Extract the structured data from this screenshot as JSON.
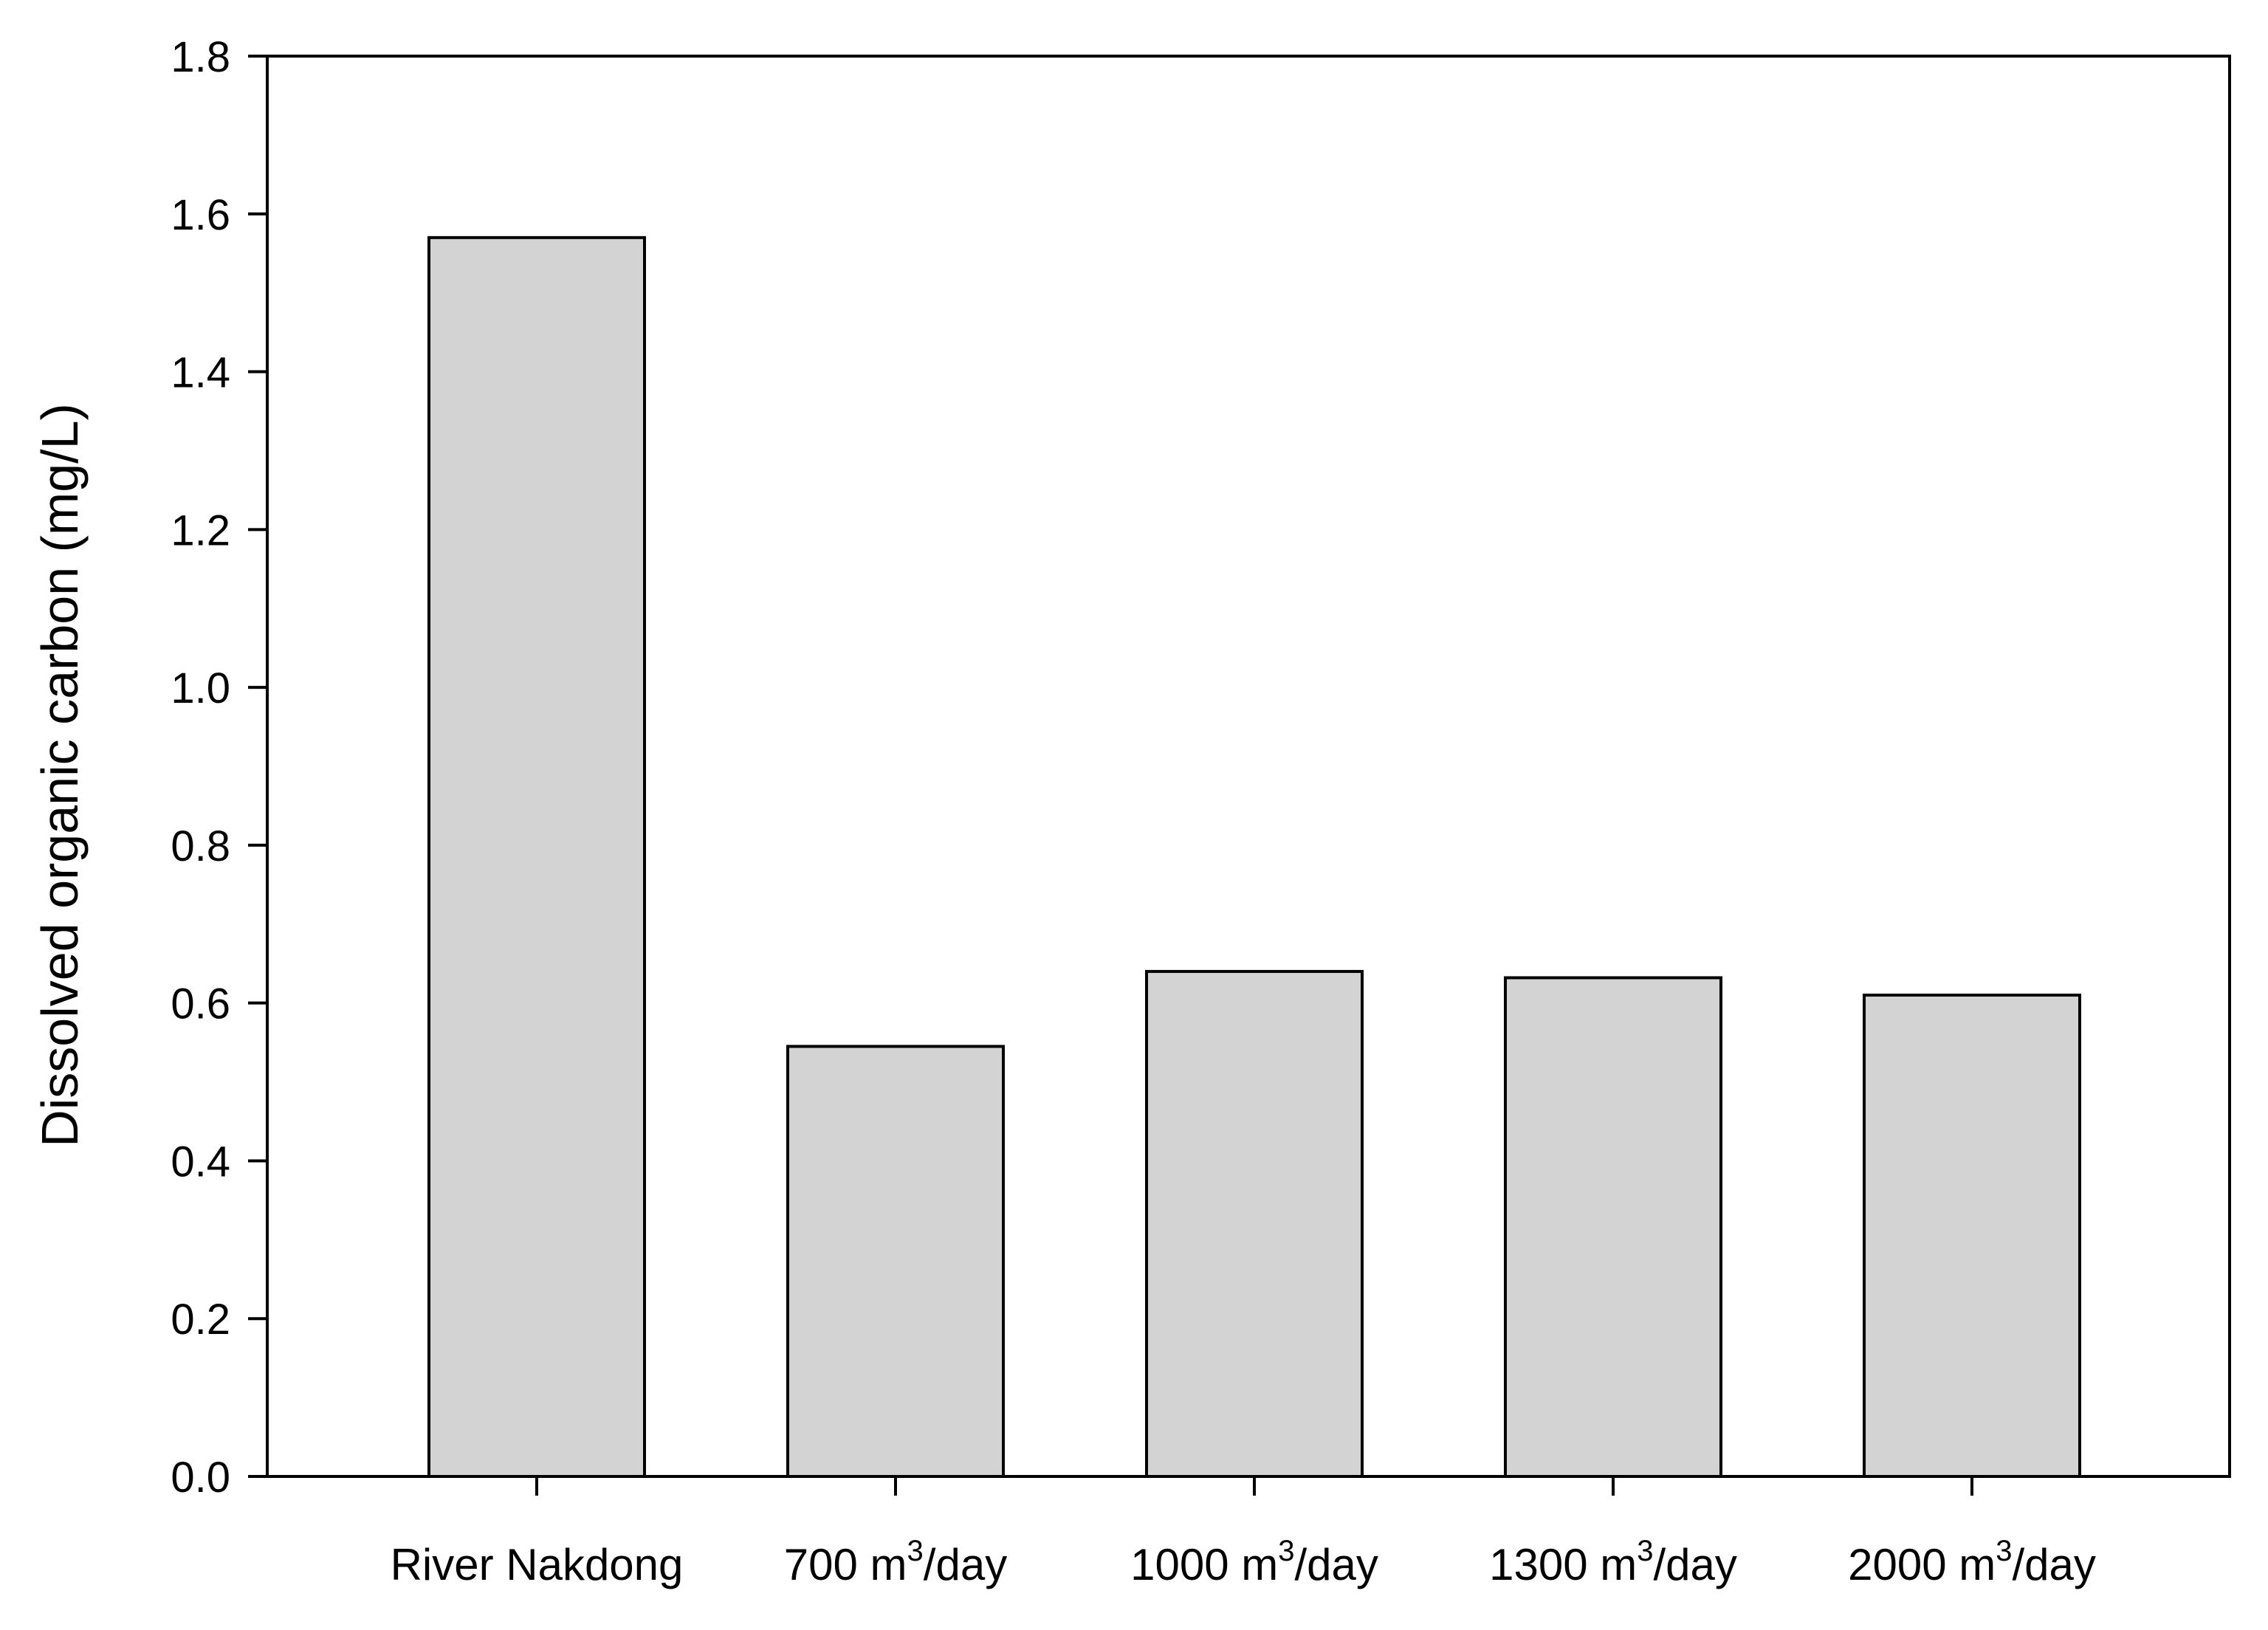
{
  "chart_data": {
    "type": "bar",
    "title": "",
    "xlabel": "",
    "ylabel": "Dissolved organic carbon (mg/L)",
    "ylim": [
      0,
      1.8
    ],
    "yticks": [
      "0.0",
      "0.2",
      "0.4",
      "0.6",
      "0.8",
      "1.0",
      "1.2",
      "1.4",
      "1.6",
      "1.8"
    ],
    "categories": [
      "River Nakdong",
      "700 m3/day",
      "1000 m3/day",
      "1300 m3/day",
      "2000 m3/day"
    ],
    "category_labels": [
      {
        "pre": "River Nakdong",
        "sup": "",
        "post": ""
      },
      {
        "pre": "700 m",
        "sup": "3",
        "post": "/day"
      },
      {
        "pre": "1000 m",
        "sup": "3",
        "post": "/day"
      },
      {
        "pre": "1300 m",
        "sup": "3",
        "post": "/day"
      },
      {
        "pre": "2000 m",
        "sup": "3",
        "post": "/day"
      }
    ],
    "values": [
      1.57,
      0.545,
      0.64,
      0.632,
      0.61
    ],
    "bar_color": "#d3d3d3",
    "edge_color": "#000000",
    "grid": false,
    "legend": "none"
  }
}
